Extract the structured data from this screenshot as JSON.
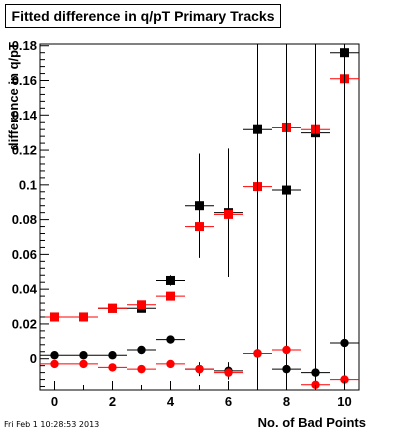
{
  "chart_data": {
    "type": "scatter",
    "title": "Fitted difference in q/pT Primary Tracks",
    "xlabel": "No. of Bad Points",
    "ylabel": "difference in q/pT",
    "xlim": [
      -0.5,
      10.5
    ],
    "ylim": [
      -0.018,
      0.181
    ],
    "xticks": [
      0,
      2,
      4,
      6,
      8,
      10
    ],
    "yticks": [
      0,
      0.02,
      0.04,
      0.06,
      0.08,
      0.1,
      0.12,
      0.14,
      0.16,
      0.18
    ],
    "ytick_labels": [
      "0",
      "0.02",
      "0.04",
      "0.06",
      "0.08",
      "0.1",
      "0.12",
      "0.14",
      "0.16",
      "0.18"
    ],
    "grid": false,
    "legend": "none",
    "series": [
      {
        "marker": "square",
        "color": "#000000",
        "x": [
          0,
          1,
          2,
          3,
          4,
          5,
          6,
          7,
          8,
          9,
          10
        ],
        "y": [
          0.024,
          0.024,
          0.029,
          0.029,
          0.045,
          0.088,
          0.084,
          0.132,
          0.097,
          0.13,
          0.176
        ],
        "yerr": [
          0.001,
          0.001,
          0.001,
          0.002,
          0.003,
          0.03,
          0.037,
          0.2,
          0.2,
          0.2,
          0.2
        ]
      },
      {
        "marker": "square",
        "color": "#ff0000",
        "x": [
          0,
          1,
          2,
          3,
          4,
          5,
          6,
          7,
          8,
          9,
          10
        ],
        "y": [
          0.024,
          0.024,
          0.029,
          0.031,
          0.036,
          0.076,
          0.083,
          0.099,
          0.133,
          0.132,
          0.161
        ],
        "yerr": [
          0.001,
          0.001,
          0.001,
          0.001,
          0.002,
          0.002,
          0.002,
          0.002,
          0.2,
          0.2,
          0.2
        ]
      },
      {
        "marker": "circle",
        "color": "#000000",
        "x": [
          0,
          1,
          2,
          3,
          4,
          5,
          6,
          7,
          8,
          9,
          10
        ],
        "y": [
          0.002,
          0.002,
          0.002,
          0.005,
          0.011,
          -0.006,
          -0.007,
          0.003,
          -0.006,
          -0.008,
          0.009
        ],
        "yerr": [
          0.0005,
          0.0005,
          0.0005,
          0.001,
          0.002,
          0.004,
          0.005,
          0.2,
          0.2,
          0.2,
          0.2
        ]
      },
      {
        "marker": "circle",
        "color": "#ff0000",
        "x": [
          0,
          1,
          2,
          3,
          4,
          5,
          6,
          7,
          8,
          9,
          10
        ],
        "y": [
          -0.003,
          -0.003,
          -0.005,
          -0.006,
          -0.003,
          -0.006,
          -0.008,
          0.003,
          0.005,
          -0.015,
          -0.012
        ],
        "yerr": [
          0.0005,
          0.0005,
          0.0005,
          0.001,
          0.001,
          0.001,
          0.001,
          0.001,
          0.001,
          0.001,
          0.001
        ]
      }
    ]
  },
  "timestamp": "Fri Feb  1 10:28:53 2013",
  "colors": {
    "black": "#000000",
    "red": "#ff0000",
    "frame": "#000000"
  }
}
